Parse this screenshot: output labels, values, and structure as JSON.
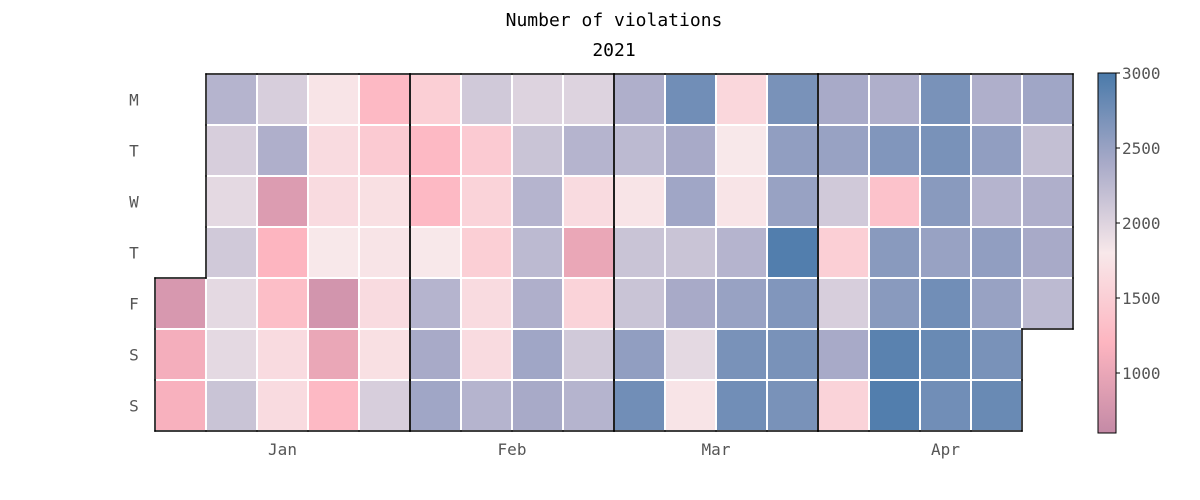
{
  "chart_data": {
    "type": "heatmap",
    "title": "Number of violations",
    "subtitle": "2021",
    "weekday_labels": [
      "M",
      "T",
      "W",
      "T",
      "F",
      "S",
      "S"
    ],
    "month_labels": [
      "Jan",
      "Feb",
      "Mar",
      "Apr"
    ],
    "colorbar": {
      "min": 600,
      "max": 3000,
      "ticks": [
        1000,
        1500,
        2000,
        2500,
        3000
      ],
      "colors": [
        "#c48aa6",
        "#fdb5c0",
        "#f8e8ea",
        "#a8aac8",
        "#4a7aaa"
      ]
    },
    "weeks": [
      {
        "month": "Jan",
        "values": [
          null,
          null,
          null,
          null,
          800,
          1100,
          1150
        ]
      },
      {
        "month": "Jan",
        "values": [
          2300,
          2050,
          1950,
          2100,
          1950,
          1950,
          2150
        ]
      },
      {
        "month": "Jan",
        "values": [
          2050,
          2350,
          850,
          1200,
          1300,
          1650,
          1650
        ]
      },
      {
        "month": "Jan",
        "values": [
          1750,
          1650,
          1650,
          1800,
          750,
          1000,
          1250
        ]
      },
      {
        "month": "Jan",
        "values": [
          1250,
          1450,
          1700,
          1750,
          1650,
          1700,
          2050
        ]
      },
      {
        "month": "Feb",
        "values": [
          1500,
          1250,
          1250,
          1800,
          2300,
          2400,
          2450
        ]
      },
      {
        "month": "Feb",
        "values": [
          2100,
          1450,
          1550,
          1500,
          1650,
          1650,
          2300
        ]
      },
      {
        "month": "Feb",
        "values": [
          2000,
          2150,
          2300,
          2250,
          2350,
          2450,
          2400
        ]
      },
      {
        "month": "Feb",
        "values": [
          2000,
          2300,
          1650,
          1000,
          1550,
          2100,
          2300
        ]
      },
      {
        "month": "Mar",
        "values": [
          2350,
          2250,
          1750,
          2150,
          2150,
          2550,
          2750
        ]
      },
      {
        "month": "Mar",
        "values": [
          2750,
          2400,
          2450,
          2150,
          2400,
          1950,
          1750
        ]
      },
      {
        "month": "Mar",
        "values": [
          1600,
          1800,
          1750,
          2300,
          2500,
          2700,
          2750
        ]
      },
      {
        "month": "Mar",
        "values": [
          2700,
          2550,
          2500,
          2950,
          2650,
          2700,
          2700
        ]
      },
      {
        "month": "Apr",
        "values": [
          2400,
          2500,
          2100,
          1500,
          2050,
          2400,
          1550
        ]
      },
      {
        "month": "Apr",
        "values": [
          2350,
          2650,
          1350,
          2600,
          2600,
          2900,
          2950
        ]
      },
      {
        "month": "Apr",
        "values": [
          2700,
          2700,
          2600,
          2500,
          2750,
          2800,
          2750
        ]
      },
      {
        "month": "Apr",
        "values": [
          2350,
          2550,
          2300,
          2550,
          2500,
          2700,
          2800
        ]
      },
      {
        "month": "Apr",
        "values": [
          2450,
          2200,
          2350,
          2400,
          2250,
          null,
          null
        ]
      }
    ]
  }
}
